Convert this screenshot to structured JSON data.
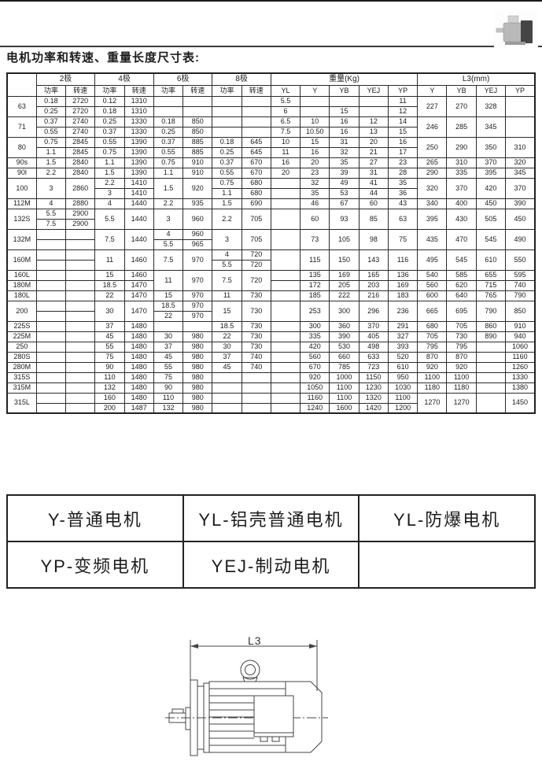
{
  "page": {
    "title": "电机功率和转速、重量长度尺寸表:"
  },
  "photo": {
    "alt": "motor-thumbnail"
  },
  "table": {
    "corner": "",
    "groups": [
      [
        "2极",
        2
      ],
      [
        "4极",
        2
      ],
      [
        "6极",
        2
      ],
      [
        "8极",
        2
      ],
      [
        "重量(Kg)",
        5
      ],
      [
        "L3(mm)",
        4
      ]
    ],
    "sub": [
      "功率",
      "转速",
      "功率",
      "转速",
      "功率",
      "转速",
      "功率",
      "转速",
      "YL",
      "Y",
      "YB",
      "YEJ",
      "YP",
      "Y",
      "YB",
      "YEJ",
      "YP"
    ],
    "rows": [
      [
        [
          "63",
          2
        ],
        "0.18",
        "2720",
        "0.12",
        "1310",
        "",
        "",
        "",
        "",
        "5.5",
        "",
        "",
        "",
        "11",
        [
          "227",
          2
        ],
        [
          "270",
          2
        ],
        [
          "328",
          2
        ],
        [
          "",
          2
        ]
      ],
      [
        "0.25",
        "2720",
        "0.18",
        "1310",
        "",
        "",
        "",
        "",
        "6",
        "",
        "15",
        "",
        "12"
      ],
      [
        [
          "71",
          2
        ],
        "0.37",
        "2740",
        "0.25",
        "1330",
        "0.18",
        "850",
        "",
        "",
        "6.5",
        "10",
        "16",
        "12",
        "14",
        [
          "246",
          2
        ],
        [
          "285",
          2
        ],
        [
          "345",
          2
        ],
        [
          "",
          2
        ]
      ],
      [
        "0.55",
        "2740",
        "0.37",
        "1330",
        "0.25",
        "850",
        "",
        "",
        "7.5",
        "10.50",
        "16",
        "13",
        "15"
      ],
      [
        [
          "80",
          2
        ],
        "0.75",
        "2845",
        "0.55",
        "1390",
        "0.37",
        "885",
        "0.18",
        "645",
        "10",
        "15",
        "31",
        "20",
        "16",
        [
          "250",
          2
        ],
        [
          "290",
          2
        ],
        [
          "350",
          2
        ],
        [
          "310",
          2
        ]
      ],
      [
        "1.1",
        "2845",
        "0.75",
        "1390",
        "0.55",
        "885",
        "0.25",
        "645",
        "11",
        "16",
        "32",
        "21",
        "17"
      ],
      [
        "90s",
        "1.5",
        "2840",
        "1.1",
        "1390",
        "0.75",
        "910",
        "0.37",
        "670",
        "16",
        "20",
        "35",
        "27",
        "23",
        "265",
        "310",
        "370",
        "320"
      ],
      [
        "90l",
        "2.2",
        "2840",
        "1.5",
        "1390",
        "1.1",
        "910",
        "0.55",
        "670",
        "20",
        "23",
        "39",
        "31",
        "28",
        "290",
        "335",
        "395",
        "345"
      ],
      [
        [
          "100",
          2
        ],
        [
          "3",
          2
        ],
        [
          "2860",
          2
        ],
        "2.2",
        "1410",
        [
          "1.5",
          2
        ],
        [
          "920",
          2
        ],
        "0.75",
        "680",
        "",
        "32",
        "49",
        "41",
        "35",
        [
          "320",
          2
        ],
        [
          "370",
          2
        ],
        [
          "420",
          2
        ],
        [
          "370",
          2
        ]
      ],
      [
        "3",
        "1410",
        "1.1",
        "680",
        "",
        "35",
        "53",
        "44",
        "36"
      ],
      [
        "112M",
        "4",
        "2880",
        "4",
        "1440",
        "2.2",
        "935",
        "1.5",
        "690",
        "",
        "46",
        "67",
        "60",
        "43",
        "340",
        "400",
        "450",
        "390"
      ],
      [
        [
          "132S",
          2
        ],
        "5.5",
        "2900",
        [
          "5.5",
          2
        ],
        [
          "1440",
          2
        ],
        [
          "3",
          2
        ],
        [
          "960",
          2
        ],
        [
          "2.2",
          2
        ],
        [
          "705",
          2
        ],
        [
          "",
          2
        ],
        [
          "60",
          2
        ],
        [
          "93",
          2
        ],
        [
          "85",
          2
        ],
        [
          "63",
          2
        ],
        [
          "395",
          2
        ],
        [
          "430",
          2
        ],
        [
          "505",
          2
        ],
        [
          "450",
          2
        ]
      ],
      [
        "7.5",
        "2900"
      ],
      [
        [
          "132M",
          2
        ],
        "",
        "",
        [
          "7.5",
          2
        ],
        [
          "1440",
          2
        ],
        "4",
        "960",
        [
          "3",
          2
        ],
        [
          "705",
          2
        ],
        [
          "",
          2
        ],
        [
          "73",
          2
        ],
        [
          "105",
          2
        ],
        [
          "98",
          2
        ],
        [
          "75",
          2
        ],
        [
          "435",
          2
        ],
        [
          "470",
          2
        ],
        [
          "545",
          2
        ],
        [
          "490",
          2
        ]
      ],
      [
        "",
        "",
        "5.5",
        "965"
      ],
      [
        [
          "160M",
          2
        ],
        "",
        "",
        [
          "11",
          2
        ],
        [
          "1460",
          2
        ],
        [
          "7.5",
          2
        ],
        [
          "970",
          2
        ],
        "4",
        "720",
        [
          "",
          2
        ],
        [
          "115",
          2
        ],
        [
          "150",
          2
        ],
        [
          "143",
          2
        ],
        [
          "116",
          2
        ],
        [
          "495",
          2
        ],
        [
          "545",
          2
        ],
        [
          "610",
          2
        ],
        [
          "550",
          2
        ]
      ],
      [
        "",
        "",
        "5.5",
        "720"
      ],
      [
        "160L",
        "",
        "",
        "15",
        "1460",
        [
          "11",
          2
        ],
        [
          "970",
          2
        ],
        [
          "7.5",
          2
        ],
        [
          "720",
          2
        ],
        "",
        "135",
        "169",
        "165",
        "136",
        "540",
        "585",
        "655",
        "595"
      ],
      [
        "180M",
        "",
        "",
        "18.5",
        "1470",
        "",
        "172",
        "205",
        "203",
        "169",
        "560",
        "620",
        "715",
        "740"
      ],
      [
        "180L",
        "",
        "",
        "22",
        "1470",
        "15",
        "970",
        "11",
        "730",
        "",
        "185",
        "222",
        "216",
        "183",
        "600",
        "640",
        "765",
        "790"
      ],
      [
        [
          "200",
          2
        ],
        "",
        "",
        [
          "30",
          2
        ],
        [
          "1470",
          2
        ],
        "18.5",
        "970",
        [
          "15",
          2
        ],
        [
          "730",
          2
        ],
        [
          "",
          2
        ],
        [
          "253",
          2
        ],
        [
          "300",
          2
        ],
        [
          "296",
          2
        ],
        [
          "236",
          2
        ],
        [
          "665",
          2
        ],
        [
          "695",
          2
        ],
        [
          "790",
          2
        ],
        [
          "850",
          2
        ]
      ],
      [
        "",
        "",
        "22",
        "970"
      ],
      [
        "225S",
        "",
        "",
        "37",
        "1480",
        "",
        "",
        "18.5",
        "730",
        "",
        "300",
        "360",
        "370",
        "291",
        "680",
        "705",
        "860",
        "910"
      ],
      [
        "225M",
        "",
        "",
        "45",
        "1480",
        "30",
        "980",
        "22",
        "730",
        "",
        "335",
        "390",
        "405",
        "327",
        "705",
        "730",
        "890",
        "940"
      ],
      [
        "250",
        "",
        "",
        "55",
        "1480",
        "37",
        "980",
        "30",
        "730",
        "",
        "420",
        "530",
        "498",
        "393",
        "795",
        "795",
        "",
        "1060"
      ],
      [
        "280S",
        "",
        "",
        "75",
        "1480",
        "45",
        "980",
        "37",
        "740",
        "",
        "560",
        "660",
        "633",
        "520",
        "870",
        "870",
        "",
        "1160"
      ],
      [
        "280M",
        "",
        "",
        "90",
        "1480",
        "55",
        "980",
        "45",
        "740",
        "",
        "670",
        "785",
        "723",
        "610",
        "920",
        "920",
        "",
        "1260"
      ],
      [
        "315S",
        "",
        "",
        "110",
        "1480",
        "75",
        "980",
        "",
        "",
        "",
        "920",
        "1000",
        "1150",
        "950",
        "1100",
        "1100",
        "",
        "1330"
      ],
      [
        "315M",
        "",
        "",
        "132",
        "1480",
        "90",
        "980",
        "",
        "",
        "",
        "1050",
        "1100",
        "1230",
        "1030",
        "1180",
        "1180",
        "",
        "1380"
      ],
      [
        [
          "315L",
          2
        ],
        "",
        "",
        "160",
        "1480",
        "110",
        "980",
        "",
        "",
        "",
        "1160",
        "1100",
        "1320",
        "1100",
        [
          "1270",
          2
        ],
        [
          "1270",
          2
        ],
        [
          "",
          2
        ],
        [
          "1450",
          2
        ]
      ],
      [
        "",
        "",
        "200",
        "1487",
        "132",
        "980",
        "",
        "",
        "",
        "1240",
        "1600",
        "1420",
        "1200"
      ]
    ]
  },
  "legend": {
    "rows": [
      [
        "Y-普通电机",
        "YL-铝壳普通电机",
        "YL-防爆电机"
      ],
      [
        "YP-变频电机",
        "YEJ-制动电机",
        ""
      ]
    ]
  },
  "drawing": {
    "dim_label": "L3"
  }
}
